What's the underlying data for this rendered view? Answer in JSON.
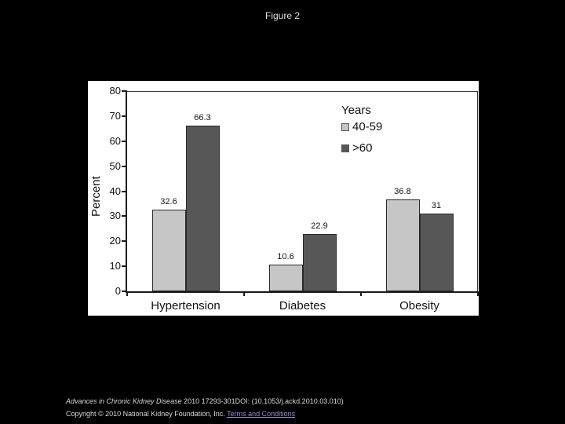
{
  "page": {
    "title": "Figure 2"
  },
  "chart_data": {
    "type": "bar",
    "title": "",
    "categories": [
      "Hypertension",
      "Diabetes",
      "Obesity"
    ],
    "series": [
      {
        "name": "40-59",
        "color": "#c6c6c6",
        "values": [
          32.6,
          10.6,
          36.8
        ]
      },
      {
        "name": ">60",
        "color": "#575757",
        "values": [
          66.3,
          22.9,
          31
        ]
      }
    ],
    "legend_title": "Years",
    "legend_position": "inside-top-right",
    "xlabel": "",
    "ylabel": "Percent",
    "ylim": [
      0,
      80
    ],
    "ytick_step": 10,
    "grid": false,
    "value_labels_shown": true
  },
  "footer": {
    "citation_journal": "Advances in Chronic Kidney Disease",
    "citation_rest": " 2010 17293-301DOI: (10.1053/j.ackd.2010.03.010)",
    "copyright": "Copyright © 2010 National Kidney Foundation, Inc. ",
    "terms_link": "Terms and Conditions"
  },
  "colors": {
    "page_bg": "#000000",
    "panel_bg": "#ffffff",
    "title_text": "#dcdcdc",
    "citation_text": "#d8d8d8",
    "link": "#9090c8",
    "axis": "#1a1a1a"
  }
}
